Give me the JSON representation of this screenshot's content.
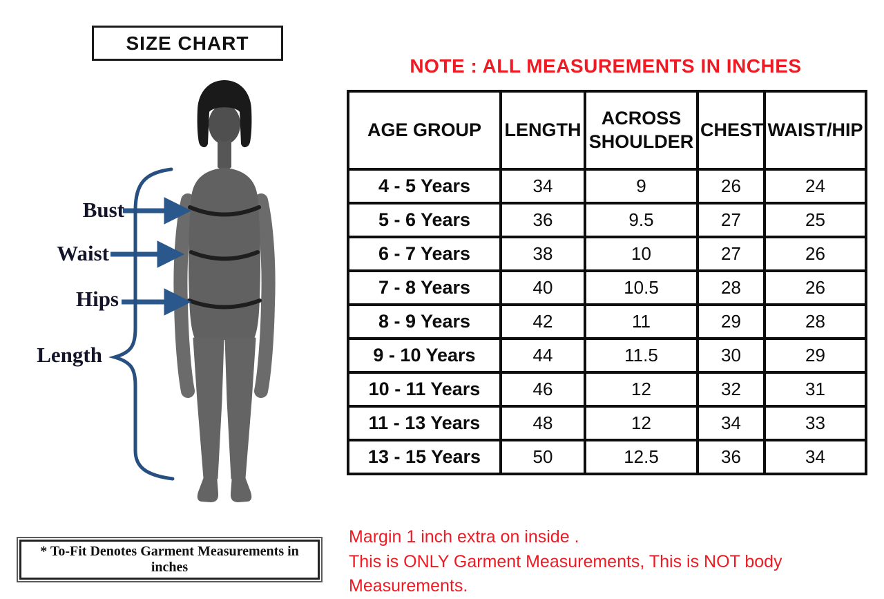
{
  "title": "SIZE CHART",
  "note": "NOTE : ALL MEASUREMENTS IN INCHES",
  "figure": {
    "labels": [
      "Bust",
      "Waist",
      "Hips",
      "Length"
    ]
  },
  "footnote": "* To-Fit Denotes Garment Measurements in inches",
  "table": {
    "headers": [
      "AGE GROUP",
      "LENGTH",
      "ACROSS SHOULDER",
      "CHEST",
      "WAIST/HIP"
    ],
    "rows": [
      [
        "4 - 5 Years",
        "34",
        "9",
        "26",
        "24"
      ],
      [
        "5 - 6 Years",
        "36",
        "9.5",
        "27",
        "25"
      ],
      [
        "6 - 7 Years",
        "38",
        "10",
        "27",
        "26"
      ],
      [
        "7 - 8 Years",
        "40",
        "10.5",
        "28",
        "26"
      ],
      [
        "8 - 9 Years",
        "42",
        "11",
        "29",
        "28"
      ],
      [
        "9 - 10 Years",
        "44",
        "11.5",
        "30",
        "29"
      ],
      [
        "10 - 11 Years",
        "46",
        "12",
        "32",
        "31"
      ],
      [
        "11 - 13 Years",
        "48",
        "12",
        "34",
        "33"
      ],
      [
        "13 - 15 Years",
        "50",
        "12.5",
        "36",
        "34"
      ]
    ]
  },
  "footer_notes": [
    "Margin 1 inch extra on inside .",
    "This is ONLY Garment Measurements, This is NOT body Measurements."
  ],
  "colors": {
    "accent_red": "#ed1c24",
    "annotation_blue": "#2a578c",
    "silhouette_gray": "#636363",
    "border_black": "#0d0d0d"
  }
}
